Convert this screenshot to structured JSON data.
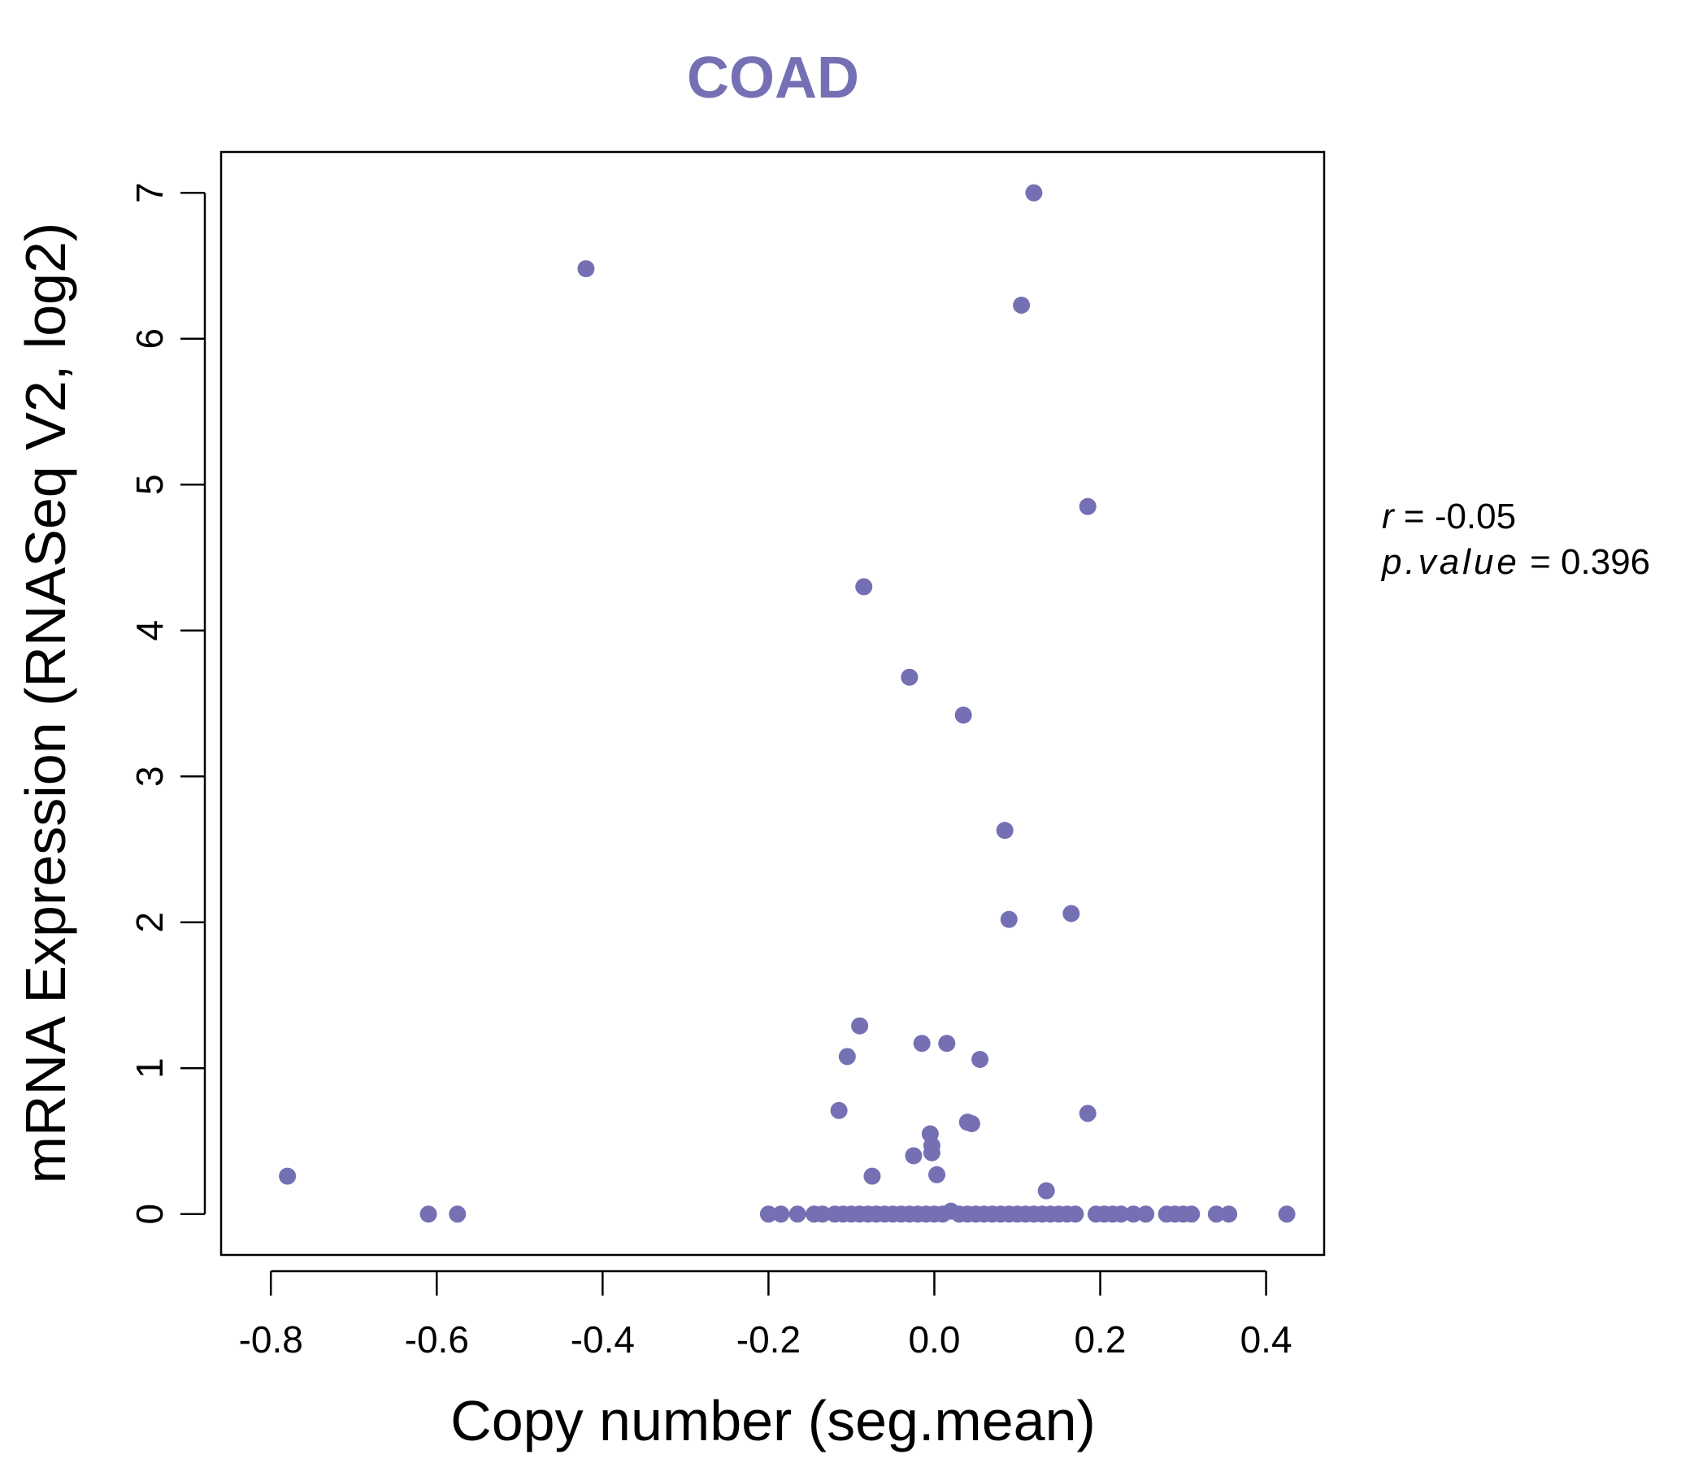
{
  "chart_data": {
    "type": "scatter",
    "title": "COAD",
    "xlabel": "Copy number (seg.mean)",
    "ylabel": "mRNA Expression (RNASeq V2, log2)",
    "xlim": [
      -0.86,
      0.47
    ],
    "ylim": [
      -0.28,
      7.28
    ],
    "xticks": [
      -0.8,
      -0.6,
      -0.4,
      -0.2,
      0.0,
      0.2,
      0.4
    ],
    "xtick_labels": [
      "-0.8",
      "-0.6",
      "-0.4",
      "-0.2",
      "0.0",
      "0.2",
      "0.4"
    ],
    "yticks": [
      0,
      1,
      2,
      3,
      4,
      5,
      6,
      7
    ],
    "ytick_labels": [
      "0",
      "1",
      "2",
      "3",
      "4",
      "5",
      "6",
      "7"
    ],
    "grid": false,
    "legend": "none",
    "point_color": "#7570b3",
    "title_color": "#7570b3",
    "stats": {
      "r_label": "r",
      "r_value": "-0.05",
      "p_label": "p.value",
      "p_value": "0.396"
    },
    "points": [
      {
        "x": 0.12,
        "y": 7.0
      },
      {
        "x": -0.42,
        "y": 6.48
      },
      {
        "x": 0.105,
        "y": 6.23
      },
      {
        "x": 0.185,
        "y": 4.85
      },
      {
        "x": -0.085,
        "y": 4.3
      },
      {
        "x": -0.03,
        "y": 3.68
      },
      {
        "x": 0.035,
        "y": 3.42
      },
      {
        "x": 0.085,
        "y": 2.63
      },
      {
        "x": 0.165,
        "y": 2.06
      },
      {
        "x": 0.09,
        "y": 2.02
      },
      {
        "x": -0.09,
        "y": 1.29
      },
      {
        "x": -0.015,
        "y": 1.17
      },
      {
        "x": 0.015,
        "y": 1.17
      },
      {
        "x": -0.105,
        "y": 1.08
      },
      {
        "x": 0.055,
        "y": 1.06
      },
      {
        "x": -0.115,
        "y": 0.71
      },
      {
        "x": 0.185,
        "y": 0.69
      },
      {
        "x": 0.04,
        "y": 0.63
      },
      {
        "x": 0.045,
        "y": 0.62
      },
      {
        "x": -0.005,
        "y": 0.55
      },
      {
        "x": -0.003,
        "y": 0.47
      },
      {
        "x": -0.003,
        "y": 0.42
      },
      {
        "x": -0.025,
        "y": 0.4
      },
      {
        "x": 0.003,
        "y": 0.27
      },
      {
        "x": -0.075,
        "y": 0.26
      },
      {
        "x": -0.78,
        "y": 0.26
      },
      {
        "x": 0.135,
        "y": 0.16
      },
      {
        "x": 0.02,
        "y": 0.02
      },
      {
        "x": -0.61,
        "y": 0.0
      },
      {
        "x": -0.575,
        "y": 0.0
      },
      {
        "x": -0.2,
        "y": 0.0
      },
      {
        "x": -0.185,
        "y": 0.0
      },
      {
        "x": -0.165,
        "y": 0.0
      },
      {
        "x": -0.145,
        "y": 0.0
      },
      {
        "x": -0.135,
        "y": 0.0
      },
      {
        "x": -0.12,
        "y": 0.0
      },
      {
        "x": -0.11,
        "y": 0.0
      },
      {
        "x": -0.1,
        "y": 0.0
      },
      {
        "x": -0.09,
        "y": 0.0
      },
      {
        "x": -0.08,
        "y": 0.0
      },
      {
        "x": -0.07,
        "y": 0.0
      },
      {
        "x": -0.06,
        "y": 0.0
      },
      {
        "x": -0.05,
        "y": 0.0
      },
      {
        "x": -0.04,
        "y": 0.0
      },
      {
        "x": -0.03,
        "y": 0.0
      },
      {
        "x": -0.02,
        "y": 0.0
      },
      {
        "x": -0.01,
        "y": 0.0
      },
      {
        "x": 0.0,
        "y": 0.0
      },
      {
        "x": 0.01,
        "y": 0.0
      },
      {
        "x": 0.03,
        "y": 0.0
      },
      {
        "x": 0.04,
        "y": 0.0
      },
      {
        "x": 0.05,
        "y": 0.0
      },
      {
        "x": 0.06,
        "y": 0.0
      },
      {
        "x": 0.07,
        "y": 0.0
      },
      {
        "x": 0.08,
        "y": 0.0
      },
      {
        "x": 0.09,
        "y": 0.0
      },
      {
        "x": 0.1,
        "y": 0.0
      },
      {
        "x": 0.11,
        "y": 0.0
      },
      {
        "x": 0.12,
        "y": 0.0
      },
      {
        "x": 0.13,
        "y": 0.0
      },
      {
        "x": 0.14,
        "y": 0.0
      },
      {
        "x": 0.15,
        "y": 0.0
      },
      {
        "x": 0.16,
        "y": 0.0
      },
      {
        "x": 0.17,
        "y": 0.0
      },
      {
        "x": 0.195,
        "y": 0.0
      },
      {
        "x": 0.205,
        "y": 0.0
      },
      {
        "x": 0.215,
        "y": 0.0
      },
      {
        "x": 0.225,
        "y": 0.0
      },
      {
        "x": 0.24,
        "y": 0.0
      },
      {
        "x": 0.255,
        "y": 0.0
      },
      {
        "x": 0.28,
        "y": 0.0
      },
      {
        "x": 0.29,
        "y": 0.0
      },
      {
        "x": 0.3,
        "y": 0.0
      },
      {
        "x": 0.31,
        "y": 0.0
      },
      {
        "x": 0.34,
        "y": 0.0
      },
      {
        "x": 0.355,
        "y": 0.0
      },
      {
        "x": 0.425,
        "y": 0.0
      }
    ]
  }
}
